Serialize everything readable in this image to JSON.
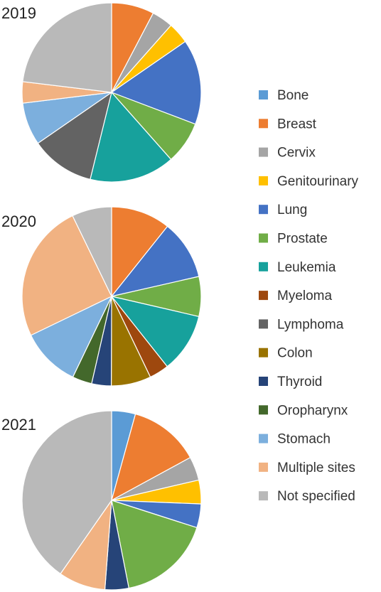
{
  "categories": [
    "Bone",
    "Breast",
    "Cervix",
    "Genitourinary",
    "Lung",
    "Prostate",
    "Leukemia",
    "Myeloma",
    "Lymphoma",
    "Colon",
    "Thyroid",
    "Oropharynx",
    "Stomach",
    "Multiple sites",
    "Not specified"
  ],
  "colors": {
    "Bone": "#5b9bd5",
    "Breast": "#ed7d31",
    "Cervix": "#a5a5a5",
    "Genitourinary": "#ffc000",
    "Lung": "#4472c4",
    "Prostate": "#70ad47",
    "Leukemia": "#17a19c",
    "Myeloma": "#9e480e",
    "Lymphoma": "#636363",
    "Colon": "#997300",
    "Thyroid": "#264478",
    "Oropharynx": "#43682b",
    "Stomach": "#7cafdd",
    "Multiple sites": "#f1b282",
    "Not specified": "#b9b9b9"
  },
  "chart_data": [
    {
      "type": "pie",
      "title": "2019",
      "start": "12 o'clock",
      "direction": "clockwise",
      "slices": [
        {
          "label": "Bone",
          "value": 0
        },
        {
          "label": "Breast",
          "value": 7
        },
        {
          "label": "Cervix",
          "value": 3.5
        },
        {
          "label": "Genitourinary",
          "value": 3.5
        },
        {
          "label": "Lung",
          "value": 14
        },
        {
          "label": "Prostate",
          "value": 7
        },
        {
          "label": "Leukemia",
          "value": 14
        },
        {
          "label": "Myeloma",
          "value": 0
        },
        {
          "label": "Lymphoma",
          "value": 10.5
        },
        {
          "label": "Colon",
          "value": 0
        },
        {
          "label": "Thyroid",
          "value": 0
        },
        {
          "label": "Oropharynx",
          "value": 0
        },
        {
          "label": "Stomach",
          "value": 7
        },
        {
          "label": "Multiple sites",
          "value": 3.5
        },
        {
          "label": "Not specified",
          "value": 21
        }
      ]
    },
    {
      "type": "pie",
      "title": "2020",
      "start": "12 o'clock",
      "direction": "clockwise",
      "slices": [
        {
          "label": "Bone",
          "value": 0
        },
        {
          "label": "Breast",
          "value": 9.7
        },
        {
          "label": "Cervix",
          "value": 0
        },
        {
          "label": "Genitourinary",
          "value": 0
        },
        {
          "label": "Lung",
          "value": 9.7
        },
        {
          "label": "Prostate",
          "value": 6.5
        },
        {
          "label": "Leukemia",
          "value": 9.7
        },
        {
          "label": "Myeloma",
          "value": 3.2
        },
        {
          "label": "Lymphoma",
          "value": 0
        },
        {
          "label": "Colon",
          "value": 6.5
        },
        {
          "label": "Thyroid",
          "value": 3.2
        },
        {
          "label": "Oropharynx",
          "value": 3.2
        },
        {
          "label": "Stomach",
          "value": 9.7
        },
        {
          "label": "Multiple sites",
          "value": 22.6
        },
        {
          "label": "Not specified",
          "value": 6.5
        }
      ]
    },
    {
      "type": "pie",
      "title": "2021",
      "start": "12 o'clock",
      "direction": "clockwise",
      "slices": [
        {
          "label": "Bone",
          "value": 4.3
        },
        {
          "label": "Breast",
          "value": 12.8
        },
        {
          "label": "Cervix",
          "value": 4.3
        },
        {
          "label": "Genitourinary",
          "value": 4.3
        },
        {
          "label": "Lung",
          "value": 4.3
        },
        {
          "label": "Prostate",
          "value": 17
        },
        {
          "label": "Leukemia",
          "value": 0
        },
        {
          "label": "Myeloma",
          "value": 0
        },
        {
          "label": "Lymphoma",
          "value": 0
        },
        {
          "label": "Colon",
          "value": 0
        },
        {
          "label": "Thyroid",
          "value": 4.3
        },
        {
          "label": "Oropharynx",
          "value": 0
        },
        {
          "label": "Stomach",
          "value": 0
        },
        {
          "label": "Multiple sites",
          "value": 8.5
        },
        {
          "label": "Not specified",
          "value": 40.4
        }
      ]
    }
  ],
  "legend": {
    "placement": "right",
    "items": [
      "Bone",
      "Breast",
      "Cervix",
      "Genitourinary",
      "Lung",
      "Prostate",
      "Leukemia",
      "Myeloma",
      "Lymphoma",
      "Colon",
      "Thyroid",
      "Oropharynx",
      "Stomach",
      "Multiple sites",
      "Not specified"
    ]
  }
}
